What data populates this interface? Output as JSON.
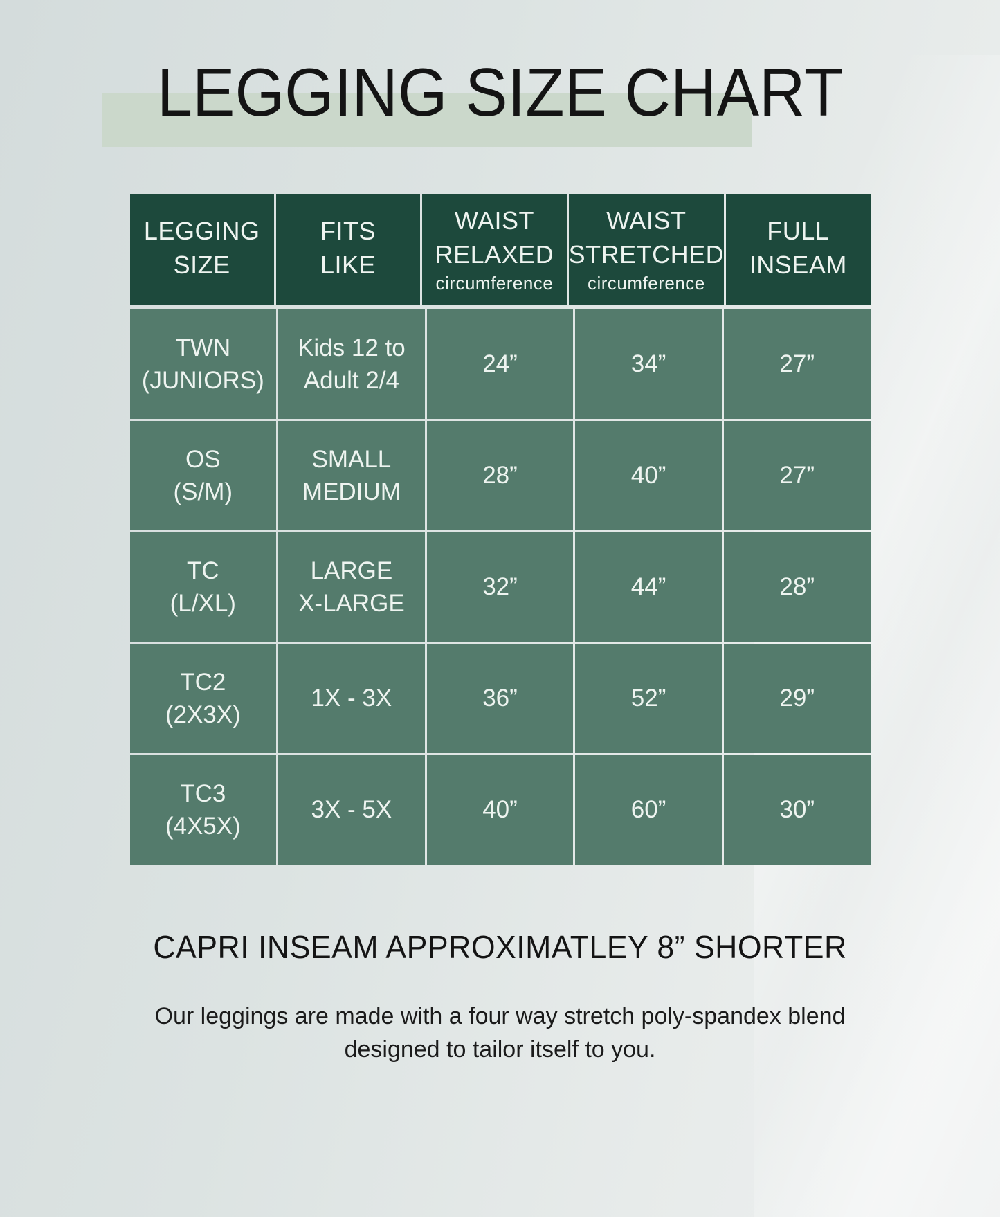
{
  "title": "LEGGING SIZE CHART",
  "colors": {
    "header-bg": "#1d493c",
    "cell-bg": "#547b6c",
    "table-text": "#eef4f0",
    "title-highlight": "#cbd8cb",
    "title-text": "#141414",
    "background-left": "#d4dcdc",
    "background-right": "#eef0f0"
  },
  "chart_data": {
    "type": "table",
    "title": "LEGGING SIZE CHART",
    "columns": [
      {
        "line1": "LEGGING",
        "line2": "SIZE",
        "sub": ""
      },
      {
        "line1": "FITS",
        "line2": "LIKE",
        "sub": ""
      },
      {
        "line1": "WAIST",
        "line2": "RELAXED",
        "sub": "circumference"
      },
      {
        "line1": "WAIST",
        "line2": "STRETCHED",
        "sub": "circumference"
      },
      {
        "line1": "FULL",
        "line2": "INSEAM",
        "sub": ""
      }
    ],
    "rows": [
      {
        "size_line1": "TWN",
        "size_line2": "(JUNIORS)",
        "fits_line1": "Kids 12 to",
        "fits_line2": "Adult 2/4",
        "waist_relaxed": "24”",
        "waist_stretched": "34”",
        "full_inseam": "27”"
      },
      {
        "size_line1": "OS",
        "size_line2": "(S/M)",
        "fits_line1": "SMALL",
        "fits_line2": "MEDIUM",
        "waist_relaxed": "28”",
        "waist_stretched": "40”",
        "full_inseam": "27”"
      },
      {
        "size_line1": "TC",
        "size_line2": "(L/XL)",
        "fits_line1": "LARGE",
        "fits_line2": "X-LARGE",
        "waist_relaxed": "32”",
        "waist_stretched": "44”",
        "full_inseam": "28”"
      },
      {
        "size_line1": "TC2",
        "size_line2": "(2X3X)",
        "fits_line1": "1X - 3X",
        "fits_line2": "",
        "waist_relaxed": "36”",
        "waist_stretched": "52”",
        "full_inseam": "29”"
      },
      {
        "size_line1": "TC3",
        "size_line2": "(4X5X)",
        "fits_line1": "3X - 5X",
        "fits_line2": "",
        "waist_relaxed": "40”",
        "waist_stretched": "60”",
        "full_inseam": "30”"
      }
    ]
  },
  "notes": {
    "capri": "CAPRI INSEAM APPROXIMATLEY 8” SHORTER",
    "description_line1": "Our leggings are made with a four way stretch poly-spandex blend",
    "description_line2": "designed to tailor itself to you."
  }
}
